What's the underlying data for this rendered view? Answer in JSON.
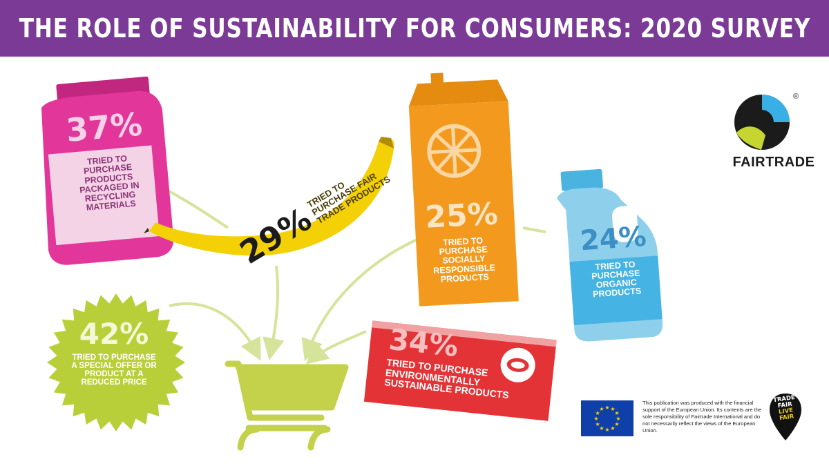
{
  "title": "THE ROLE OF SUSTAINABILITY FOR CONSUMERS: 2020 SURVEY",
  "colors": {
    "banner": "#7b3a96",
    "jar": "#e2369b",
    "banana": "#f4d007",
    "carton": "#f39a1e",
    "bottle": "#8ed0ec",
    "badge": "#b9cf3a",
    "bar": "#e43336",
    "cart": "#c3d24a",
    "arrows": "#d6e39a"
  },
  "stats": {
    "recycling": {
      "value": "37%",
      "label": "TRIED TO PURCHASE PRODUCTS PACKAGED IN RECYCLING MATERIALS",
      "icon": "jar-icon"
    },
    "fairtrade": {
      "value": "29%",
      "label": "TRIED TO PURCHASE FAIR TRADE PRODUCTS",
      "icon": "banana-icon"
    },
    "socially": {
      "value": "25%",
      "label": "TRIED TO PURCHASE SOCIALLY RESPONSIBLE PRODUCTS",
      "icon": "juice-carton-icon"
    },
    "organic": {
      "value": "24%",
      "label": "TRIED TO PURCHASE ORGANIC PRODUCTS",
      "icon": "milk-bottle-icon"
    },
    "special_offer": {
      "value": "42%",
      "label": "TRIED TO PURCHASE A SPECIAL OFFER OR PRODUCT AT A REDUCED PRICE",
      "icon": "starburst-badge-icon"
    },
    "environmental": {
      "value": "34%",
      "label": "TRIED TO PURCHASE ENVIRONMENTALLY SUSTAINABLE PRODUCTS",
      "icon": "chocolate-bar-icon"
    }
  },
  "logos": {
    "fairtrade_word": "FAIRTRADE",
    "registered": "®",
    "tflf": [
      "TRADE",
      "FAIR",
      "LIVE",
      "FAIR"
    ]
  },
  "disclaimer": "This publication was produced with the financial support of the European Union. Its contents are the sole responsibility of Fairtrade International and do not necessarily reflect the views of the European Union."
}
